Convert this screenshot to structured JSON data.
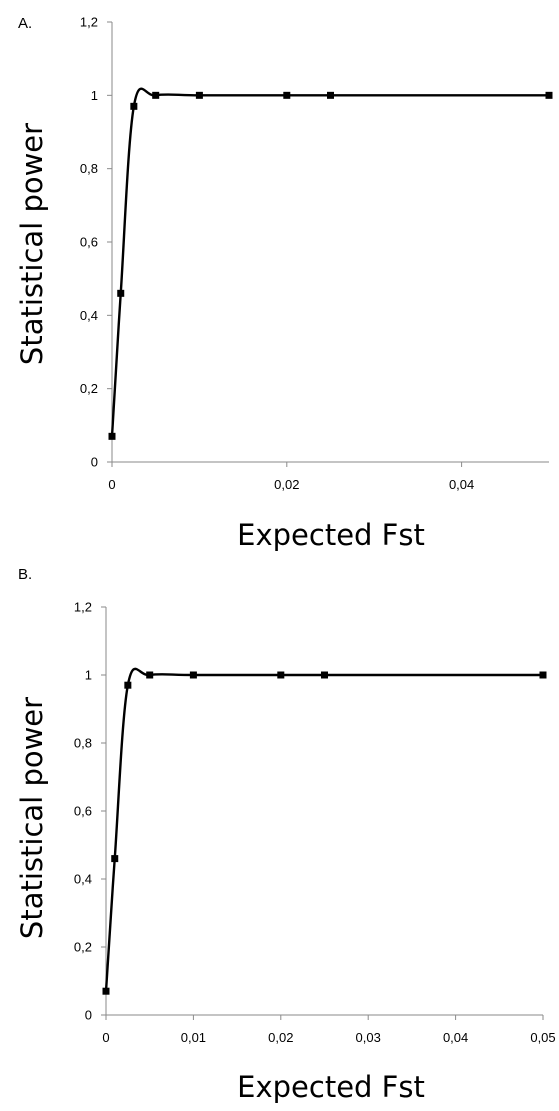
{
  "chart_data": [
    {
      "type": "line",
      "panel_label": "A.",
      "xlabel": "Expected Fst",
      "ylabel": "Statistical power",
      "xlim": [
        0,
        0.05
      ],
      "ylim": [
        0,
        1.2
      ],
      "x_ticks": [
        0,
        0.02,
        0.04
      ],
      "x_tick_labels": [
        "0",
        "0,02",
        "0,04"
      ],
      "y_ticks": [
        0,
        0.2,
        0.4,
        0.6,
        0.8,
        1,
        1.2
      ],
      "y_tick_labels": [
        "0",
        "0,2",
        "0,4",
        "0,6",
        "0,8",
        "1",
        "1,2"
      ],
      "grid": false,
      "series": [
        {
          "x": [
            0,
            0.001,
            0.0025,
            0.005,
            0.01,
            0.02,
            0.025,
            0.05
          ],
          "values": [
            0.07,
            0.46,
            0.97,
            1.0,
            1.0,
            1.0,
            1.0,
            1.0
          ]
        }
      ]
    },
    {
      "type": "line",
      "panel_label": "B.",
      "xlabel": "Expected Fst",
      "ylabel": "Statistical power",
      "xlim": [
        0,
        0.05
      ],
      "ylim": [
        0,
        1.2
      ],
      "x_ticks": [
        0,
        0.01,
        0.02,
        0.03,
        0.04,
        0.05
      ],
      "x_tick_labels": [
        "0",
        "0,01",
        "0,02",
        "0,03",
        "0,04",
        "0,05"
      ],
      "y_ticks": [
        0,
        0.2,
        0.4,
        0.6,
        0.8,
        1,
        1.2
      ],
      "y_tick_labels": [
        "0",
        "0,2",
        "0,4",
        "0,6",
        "0,8",
        "1",
        "1,2"
      ],
      "grid": false,
      "series": [
        {
          "x": [
            0,
            0.001,
            0.0025,
            0.005,
            0.01,
            0.02,
            0.025,
            0.05
          ],
          "values": [
            0.07,
            0.46,
            0.97,
            1.0,
            1.0,
            1.0,
            1.0,
            1.0
          ]
        }
      ]
    }
  ]
}
